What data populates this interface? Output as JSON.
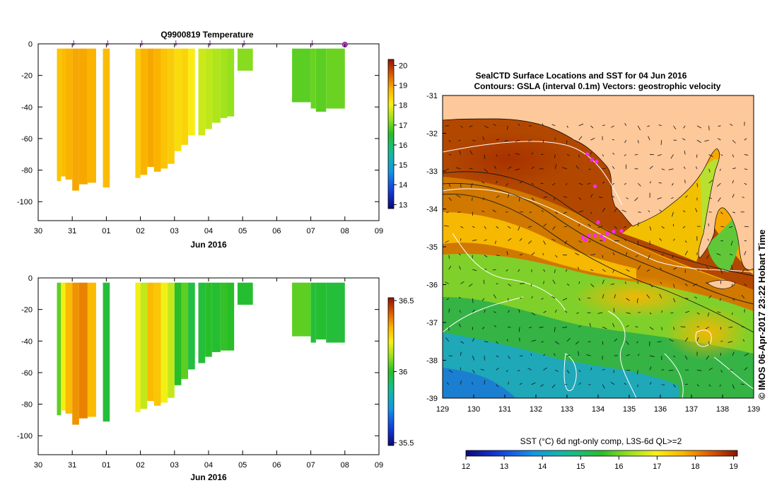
{
  "chart_data": [
    {
      "id": "temperature",
      "type": "heatmap",
      "title": "Q9900819  Temperature",
      "xlabel": "Jun 2016",
      "x_ticks": [
        "30",
        "31",
        "01",
        "02",
        "03",
        "04",
        "05",
        "06",
        "07",
        "08",
        "09"
      ],
      "y_ticks": [
        "0",
        "-20",
        "-40",
        "-60",
        "-80",
        "-100"
      ],
      "ylim": [
        -112,
        0
      ],
      "colorbar": {
        "ticks": [
          "13",
          "14",
          "15",
          "16",
          "17",
          "18",
          "19",
          "20"
        ],
        "range": [
          12.8,
          20.3
        ]
      },
      "profile_markers_x": [
        31.0,
        32.0,
        33.0,
        34.0,
        35.0,
        36.0,
        38.0
      ],
      "highlight_marker_x": 39.0,
      "profiles": [
        {
          "x0": 30.55,
          "x1": 30.67,
          "depth": 87,
          "value": 18.6
        },
        {
          "x0": 30.67,
          "x1": 30.8,
          "depth": 84,
          "value": 18.7
        },
        {
          "x0": 30.8,
          "x1": 31.0,
          "depth": 86,
          "value": 18.8
        },
        {
          "x0": 31.0,
          "x1": 31.2,
          "depth": 93,
          "value": 18.9
        },
        {
          "x0": 31.2,
          "x1": 31.45,
          "depth": 89,
          "value": 18.9
        },
        {
          "x0": 31.45,
          "x1": 31.7,
          "depth": 88,
          "value": 18.8
        },
        {
          "x0": 31.9,
          "x1": 32.1,
          "depth": 91,
          "value": 18.7
        },
        {
          "x0": 32.85,
          "x1": 33.0,
          "depth": 85,
          "value": 18.5
        },
        {
          "x0": 33.0,
          "x1": 33.2,
          "depth": 83,
          "value": 18.8
        },
        {
          "x0": 33.2,
          "x1": 33.4,
          "depth": 78,
          "value": 18.9
        },
        {
          "x0": 33.4,
          "x1": 33.6,
          "depth": 81,
          "value": 18.8
        },
        {
          "x0": 33.6,
          "x1": 33.8,
          "depth": 79,
          "value": 18.6
        },
        {
          "x0": 33.8,
          "x1": 34.0,
          "depth": 76,
          "value": 18.5
        },
        {
          "x0": 34.0,
          "x1": 34.2,
          "depth": 68,
          "value": 18.3
        },
        {
          "x0": 34.2,
          "x1": 34.4,
          "depth": 64,
          "value": 18.4
        },
        {
          "x0": 34.4,
          "x1": 34.6,
          "depth": 58,
          "value": 18.1
        },
        {
          "x0": 34.7,
          "x1": 34.9,
          "depth": 58,
          "value": 17.7
        },
        {
          "x0": 34.9,
          "x1": 35.1,
          "depth": 54,
          "value": 17.6
        },
        {
          "x0": 35.1,
          "x1": 35.35,
          "depth": 50,
          "value": 17.5
        },
        {
          "x0": 35.35,
          "x1": 35.55,
          "depth": 47,
          "value": 17.4
        },
        {
          "x0": 35.55,
          "x1": 35.75,
          "depth": 46,
          "value": 17.3
        },
        {
          "x0": 35.85,
          "x1": 36.3,
          "depth": 17,
          "value": 17.2
        },
        {
          "x0": 37.45,
          "x1": 38.0,
          "depth": 37,
          "value": 16.9
        },
        {
          "x0": 38.0,
          "x1": 38.15,
          "depth": 41,
          "value": 17.0
        },
        {
          "x0": 38.15,
          "x1": 38.45,
          "depth": 43,
          "value": 16.9
        },
        {
          "x0": 38.45,
          "x1": 39.0,
          "depth": 41,
          "value": 17.0
        }
      ]
    },
    {
      "id": "salinity",
      "type": "heatmap",
      "xlabel": "Jun 2016",
      "x_ticks": [
        "30",
        "31",
        "01",
        "02",
        "03",
        "04",
        "05",
        "06",
        "07",
        "08",
        "09"
      ],
      "y_ticks": [
        "0",
        "-20",
        "-40",
        "-60",
        "-80",
        "-100"
      ],
      "ylim": [
        -112,
        0
      ],
      "colorbar": {
        "ticks": [
          "35.5",
          "36",
          "36.5"
        ],
        "range": [
          35.48,
          36.52
        ]
      },
      "profiles": [
        {
          "x0": 30.55,
          "x1": 30.67,
          "depth": 87,
          "value": 36.05
        },
        {
          "x0": 30.67,
          "x1": 30.8,
          "depth": 84,
          "value": 36.2
        },
        {
          "x0": 30.8,
          "x1": 31.0,
          "depth": 86,
          "value": 36.3
        },
        {
          "x0": 31.0,
          "x1": 31.2,
          "depth": 93,
          "value": 36.35
        },
        {
          "x0": 31.2,
          "x1": 31.45,
          "depth": 89,
          "value": 36.37
        },
        {
          "x0": 31.45,
          "x1": 31.7,
          "depth": 88,
          "value": 36.3
        },
        {
          "x0": 31.9,
          "x1": 32.1,
          "depth": 91,
          "value": 35.98
        },
        {
          "x0": 32.85,
          "x1": 33.0,
          "depth": 85,
          "value": 36.2
        },
        {
          "x0": 33.0,
          "x1": 33.2,
          "depth": 83,
          "value": 36.15
        },
        {
          "x0": 33.2,
          "x1": 33.4,
          "depth": 78,
          "value": 36.3
        },
        {
          "x0": 33.4,
          "x1": 33.6,
          "depth": 81,
          "value": 36.28
        },
        {
          "x0": 33.6,
          "x1": 33.8,
          "depth": 79,
          "value": 36.2
        },
        {
          "x0": 33.8,
          "x1": 34.0,
          "depth": 76,
          "value": 36.15
        },
        {
          "x0": 34.0,
          "x1": 34.2,
          "depth": 68,
          "value": 36.0
        },
        {
          "x0": 34.2,
          "x1": 34.4,
          "depth": 64,
          "value": 36.05
        },
        {
          "x0": 34.4,
          "x1": 34.6,
          "depth": 58,
          "value": 35.97
        },
        {
          "x0": 34.7,
          "x1": 34.9,
          "depth": 54,
          "value": 35.98
        },
        {
          "x0": 34.9,
          "x1": 35.1,
          "depth": 50,
          "value": 36.0
        },
        {
          "x0": 35.1,
          "x1": 35.35,
          "depth": 47,
          "value": 35.99
        },
        {
          "x0": 35.35,
          "x1": 35.55,
          "depth": 46,
          "value": 36.01
        },
        {
          "x0": 35.55,
          "x1": 35.75,
          "depth": 46,
          "value": 36.0
        },
        {
          "x0": 35.85,
          "x1": 36.3,
          "depth": 17,
          "value": 35.99
        },
        {
          "x0": 37.45,
          "x1": 38.0,
          "depth": 37,
          "value": 36.05
        },
        {
          "x0": 38.0,
          "x1": 38.15,
          "depth": 41,
          "value": 35.98
        },
        {
          "x0": 38.15,
          "x1": 38.45,
          "depth": 39,
          "value": 35.99
        },
        {
          "x0": 38.45,
          "x1": 39.0,
          "depth": 41,
          "value": 35.98
        }
      ]
    },
    {
      "id": "sst-map",
      "type": "heatmap",
      "title": "SealCTD Surface Locations and SST for 04 Jun 2016",
      "subtitle": "Contours: GSLA (interval 0.1m) Vectors: geostrophic velocity",
      "x_ticks": [
        "129",
        "130",
        "131",
        "132",
        "133",
        "134",
        "135",
        "136",
        "137",
        "138",
        "139"
      ],
      "y_ticks": [
        "-31",
        "-32",
        "-33",
        "-34",
        "-35",
        "-36",
        "-37",
        "-38",
        "-39"
      ],
      "xlim": [
        129,
        139
      ],
      "ylim": [
        -39,
        -31
      ],
      "colorbar": {
        "label": "SST (°C) 6d ngt-only comp, L3S-6d QL>=2",
        "ticks": [
          "12",
          "13",
          "14",
          "15",
          "16",
          "17",
          "18",
          "19"
        ],
        "range": [
          12,
          19.1
        ]
      },
      "credit": "© IMOS 06-Apr-2017 23:22 Hobart Time",
      "seal_locations": [
        {
          "lon": 133.65,
          "lat": -32.55
        },
        {
          "lon": 133.8,
          "lat": -32.7
        },
        {
          "lon": 133.95,
          "lat": -32.75
        },
        {
          "lon": 133.9,
          "lat": -33.4
        },
        {
          "lon": 134.0,
          "lat": -34.35
        },
        {
          "lon": 133.5,
          "lat": -34.75
        },
        {
          "lon": 133.7,
          "lat": -34.7
        },
        {
          "lon": 133.9,
          "lat": -34.7
        },
        {
          "lon": 134.1,
          "lat": -34.72
        },
        {
          "lon": 134.3,
          "lat": -34.65
        },
        {
          "lon": 134.5,
          "lat": -34.6
        },
        {
          "lon": 134.75,
          "lat": -34.58
        },
        {
          "lon": 134.2,
          "lat": -34.8
        },
        {
          "lon": 133.6,
          "lat": -34.82
        }
      ]
    }
  ]
}
